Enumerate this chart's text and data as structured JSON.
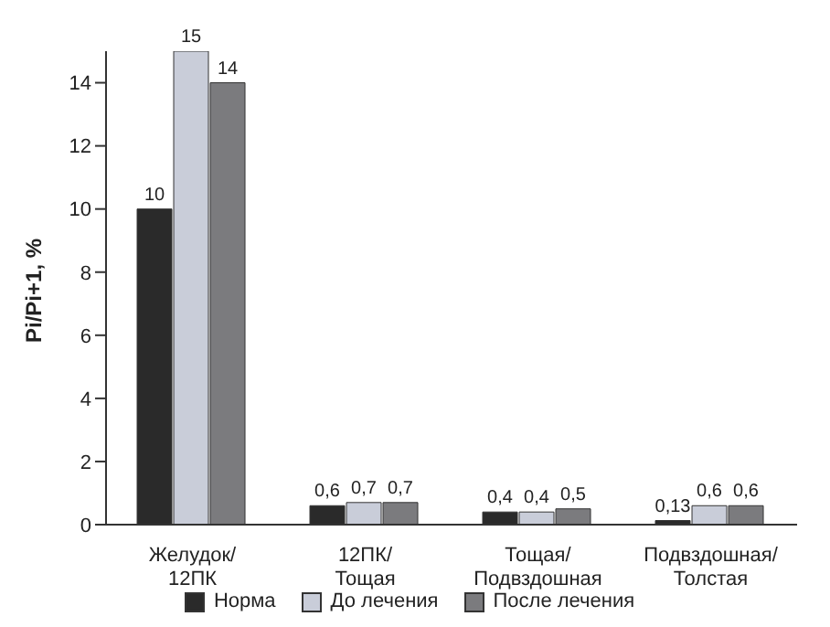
{
  "chart_data": {
    "type": "bar",
    "ylabel": "Pi/Pi+1, %",
    "categories": [
      "Желудок/\n12ПК",
      "12ПК/\nТощая",
      "Тощая/\nПодвздошная",
      "Подвздошная/\nТолстая"
    ],
    "series": [
      {
        "name": "Норма",
        "color": "#2a2a2a",
        "values": [
          10,
          0.6,
          0.4,
          0.13
        ],
        "value_labels": [
          "10",
          "0,6",
          "0,4",
          "0,13"
        ]
      },
      {
        "name": "До лечения",
        "color": "#c9cdd9",
        "values": [
          15,
          0.7,
          0.4,
          0.6
        ],
        "value_labels": [
          "15",
          "0,7",
          "0,4",
          "0,6"
        ]
      },
      {
        "name": "После лечения",
        "color": "#7b7b7e",
        "values": [
          14,
          0.7,
          0.5,
          0.6
        ],
        "value_labels": [
          "14",
          "0,7",
          "0,5",
          "0,6"
        ]
      }
    ],
    "ylim": [
      0,
      15
    ],
    "yticks": [
      0,
      2,
      4,
      6,
      8,
      10,
      12,
      14
    ],
    "grid": false,
    "legend": "bottom"
  }
}
